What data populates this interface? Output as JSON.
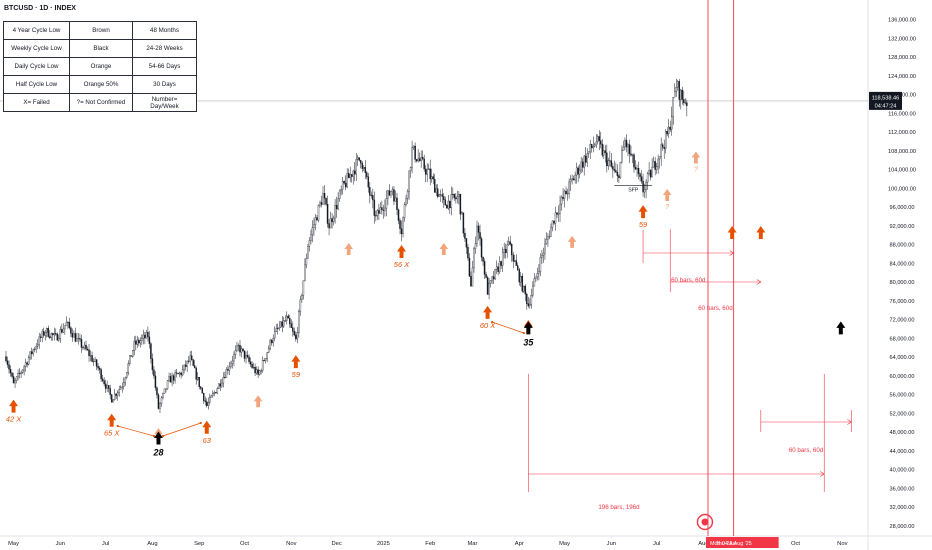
{
  "header": {
    "title": "BTCUSD · 1D · INDEX"
  },
  "legend_table": {
    "rows": [
      [
        "4 Year Cycle Low",
        "Brown",
        "48 Months"
      ],
      [
        "Weekly Cycle Low",
        "Black",
        "24-28 Weeks"
      ],
      [
        "Daily Cycle Low",
        "Orange",
        "54-66 Days"
      ],
      [
        "Half Cycle Low",
        "Orange 50%",
        "30 Days"
      ],
      [
        "X= Failed",
        "?= Not Confirmed",
        "Number= Day/Week"
      ]
    ]
  },
  "colors": {
    "up_candle": "#131722",
    "down_candle": "#131722",
    "daily_cycle_arrow": "#e65100",
    "half_cycle_arrow": "#f0a57a",
    "weekly_cycle_arrow": "#000000",
    "projection_line": "#f23645",
    "price_label_bg": "#131722"
  },
  "chart_data": {
    "type": "candlestick",
    "title": "BTCUSD · 1D · INDEX",
    "y_axis": {
      "ticks": [
        "136,000.00",
        "132,000.00",
        "128,000.00",
        "124,000.00",
        "120,000.00",
        "116,000.00",
        "112,000.00",
        "108,000.00",
        "104,000.00",
        "100,000.00",
        "96,000.00",
        "92,000.00",
        "88,000.00",
        "84,000.00",
        "80,000.00",
        "76,000.00",
        "72,000.00",
        "68,000.00",
        "64,000.00",
        "60,000.00",
        "56,000.00",
        "52,000.00",
        "48,000.00",
        "44,000.00",
        "40,000.00",
        "36,000.00",
        "32,000.00",
        "28,000.00"
      ],
      "ylim": [
        27000,
        137500
      ]
    },
    "x_axis": {
      "ticks": [
        "May",
        "Jun",
        "Jul",
        "Aug",
        "Sep",
        "Oct",
        "Nov",
        "Dec",
        "2025",
        "Feb",
        "Mar",
        "Apr",
        "May",
        "Jun",
        "Jul",
        "Aug",
        "Sep",
        "Oct",
        "Nov"
      ],
      "start": "2024-04-26",
      "end": "2025-11-18"
    },
    "last_price": {
      "value": "118,538.46",
      "countdown": "04:47:24",
      "y": 118538.46
    },
    "price_path": [
      [
        "2024-04-26",
        64000
      ],
      [
        "2024-05-01",
        58000
      ],
      [
        "2024-05-08",
        62000
      ],
      [
        "2024-05-15",
        66000
      ],
      [
        "2024-05-22",
        69500
      ],
      [
        "2024-05-29",
        68000
      ],
      [
        "2024-06-05",
        71000
      ],
      [
        "2024-06-12",
        67500
      ],
      [
        "2024-06-19",
        65000
      ],
      [
        "2024-06-26",
        61500
      ],
      [
        "2024-07-05",
        55000
      ],
      [
        "2024-07-12",
        58000
      ],
      [
        "2024-07-20",
        66500
      ],
      [
        "2024-07-29",
        68500
      ],
      [
        "2024-08-05",
        53000
      ],
      [
        "2024-08-12",
        59000
      ],
      [
        "2024-08-20",
        60500
      ],
      [
        "2024-08-26",
        63500
      ],
      [
        "2024-09-06",
        53500
      ],
      [
        "2024-09-15",
        58500
      ],
      [
        "2024-09-27",
        66000
      ],
      [
        "2024-10-10",
        60000
      ],
      [
        "2024-10-20",
        68500
      ],
      [
        "2024-10-29",
        72000
      ],
      [
        "2024-11-04",
        67500
      ],
      [
        "2024-11-12",
        88000
      ],
      [
        "2024-11-22",
        98500
      ],
      [
        "2024-11-26",
        92000
      ],
      [
        "2024-12-05",
        100000
      ],
      [
        "2024-12-17",
        106500
      ],
      [
        "2024-12-27",
        93500
      ],
      [
        "2025-01-07",
        100000
      ],
      [
        "2025-01-13",
        91000
      ],
      [
        "2025-01-20",
        108000
      ],
      [
        "2025-01-31",
        103000
      ],
      [
        "2025-02-10",
        96500
      ],
      [
        "2025-02-20",
        98000
      ],
      [
        "2025-02-28",
        79500
      ],
      [
        "2025-03-04",
        92500
      ],
      [
        "2025-03-11",
        78000
      ],
      [
        "2025-03-25",
        88000
      ],
      [
        "2025-04-07",
        75000
      ],
      [
        "2025-04-15",
        84500
      ],
      [
        "2025-04-25",
        94500
      ],
      [
        "2025-05-10",
        104000
      ],
      [
        "2025-05-22",
        110000
      ],
      [
        "2025-06-05",
        102000
      ],
      [
        "2025-06-10",
        110000
      ],
      [
        "2025-06-22",
        99500
      ],
      [
        "2025-07-01",
        106000
      ],
      [
        "2025-07-09",
        112000
      ],
      [
        "2025-07-14",
        122000
      ],
      [
        "2025-07-18",
        119000
      ],
      [
        "2025-07-21",
        118538
      ]
    ],
    "series": [
      {
        "name": "4 Year Cycle Low",
        "color": "Brown"
      },
      {
        "name": "Weekly Cycle Low",
        "color": "Black"
      },
      {
        "name": "Daily Cycle Low",
        "color": "Orange"
      },
      {
        "name": "Half Cycle Low",
        "color": "Orange 50%"
      }
    ],
    "annotations": {
      "daily_cycle_lows": [
        {
          "date": "2024-05-01",
          "price": 58000,
          "label": "42 X"
        },
        {
          "date": "2024-07-05",
          "price": 55000,
          "label": "65 X"
        },
        {
          "date": "2024-09-06",
          "price": 53500,
          "label": "63"
        },
        {
          "date": "2024-11-04",
          "price": 67500,
          "label": "59"
        },
        {
          "date": "2025-01-13",
          "price": 91000,
          "label": "56 X"
        },
        {
          "date": "2025-03-11",
          "price": 78000,
          "label": "60 X"
        },
        {
          "date": "2025-04-07",
          "price": 75000,
          "label": ""
        },
        {
          "date": "2025-06-22",
          "price": 99500,
          "label": "59"
        },
        {
          "date": "2025-08-20",
          "price": 95000,
          "label": ""
        },
        {
          "date": "2025-09-08",
          "price": 95000,
          "label": ""
        }
      ],
      "half_cycle_lows": [
        {
          "date": "2024-08-05",
          "price": 53000,
          "label": ""
        },
        {
          "date": "2024-10-10",
          "price": 60000,
          "label": ""
        },
        {
          "date": "2024-12-09",
          "price": 92500,
          "label": ""
        },
        {
          "date": "2025-02-10",
          "price": 92500,
          "label": ""
        },
        {
          "date": "2025-05-06",
          "price": 94000,
          "label": ""
        },
        {
          "date": "2025-07-08",
          "price": 104000,
          "label": "?"
        },
        {
          "date": "2025-07-27",
          "price": 112000,
          "label": "?"
        }
      ],
      "weekly_cycle_lows": [
        {
          "date": "2024-08-05",
          "price": 48000,
          "label": "28"
        },
        {
          "date": "2025-04-07",
          "price": 71500,
          "label": "35"
        },
        {
          "date": "2025-10-31",
          "price": 71500,
          "label": ""
        }
      ],
      "sfp_label": "SFP",
      "cycle_ranges": [
        {
          "from": "2024-07-09",
          "to": "2024-08-02"
        },
        {
          "from": "2024-08-08",
          "to": "2024-09-02"
        },
        {
          "from": "2025-03-14",
          "to": "2025-04-04"
        }
      ],
      "projections": [
        {
          "label": "60 bars, 60d",
          "from": "2025-06-22",
          "to": "2025-08-21"
        },
        {
          "label": "60 bars, 60d",
          "from": "2025-07-10",
          "to": "2025-09-08"
        },
        {
          "label": "60 bars, 60d",
          "from": "2025-09-08",
          "to": "2025-11-07"
        },
        {
          "label": "196 bars, 196d",
          "from": "2025-04-07",
          "to": "2025-10-20"
        }
      ],
      "vertical_lines": [
        {
          "date": "2025-08-04",
          "label": "Mon 04 Au"
        },
        {
          "date": "2025-08-21",
          "label": "Thu 21 Aug '25"
        }
      ]
    }
  }
}
